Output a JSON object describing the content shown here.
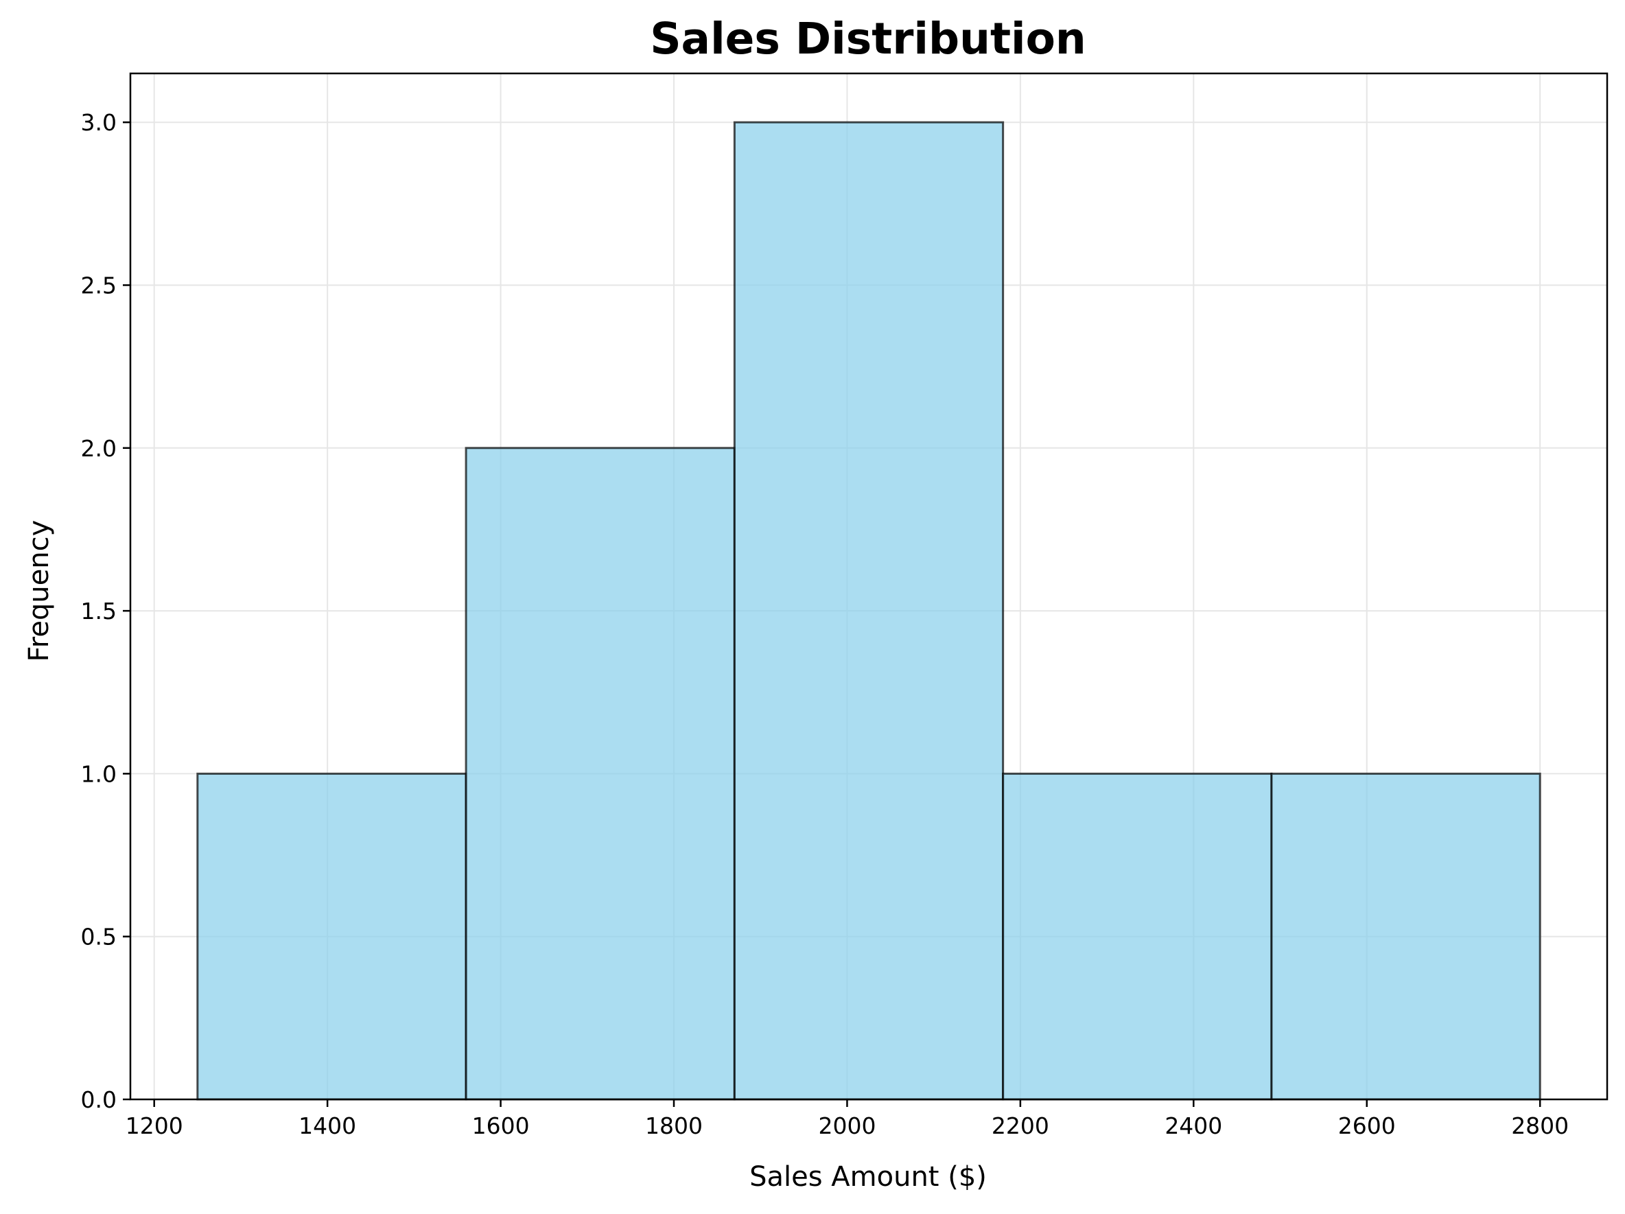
{
  "chart_data": {
    "type": "bar",
    "title": "Sales Distribution",
    "xlabel": "Sales Amount ($)",
    "ylabel": "Frequency",
    "bins": [
      {
        "start": 1250,
        "end": 1560,
        "count": 1
      },
      {
        "start": 1560,
        "end": 1870,
        "count": 2
      },
      {
        "start": 1870,
        "end": 2180,
        "count": 3
      },
      {
        "start": 2180,
        "end": 2490,
        "count": 1
      },
      {
        "start": 2490,
        "end": 2800,
        "count": 1
      }
    ],
    "xlim": [
      1172.5,
      2877.5
    ],
    "ylim": [
      0,
      3.15
    ],
    "xticks": [
      1200,
      1400,
      1600,
      1800,
      2000,
      2200,
      2400,
      2600,
      2800
    ],
    "yticks": [
      0.0,
      0.5,
      1.0,
      1.5,
      2.0,
      2.5,
      3.0
    ],
    "xtick_labels": [
      "1200",
      "1400",
      "1600",
      "1800",
      "2000",
      "2200",
      "2400",
      "2600",
      "2800"
    ],
    "ytick_labels": [
      "0.0",
      "0.5",
      "1.0",
      "1.5",
      "2.0",
      "2.5",
      "3.0"
    ],
    "grid": true,
    "colors": {
      "bar_fill": "#87CEEB",
      "bar_edge": "#000000",
      "grid": "#e6e6e6",
      "axis": "#000000"
    }
  }
}
